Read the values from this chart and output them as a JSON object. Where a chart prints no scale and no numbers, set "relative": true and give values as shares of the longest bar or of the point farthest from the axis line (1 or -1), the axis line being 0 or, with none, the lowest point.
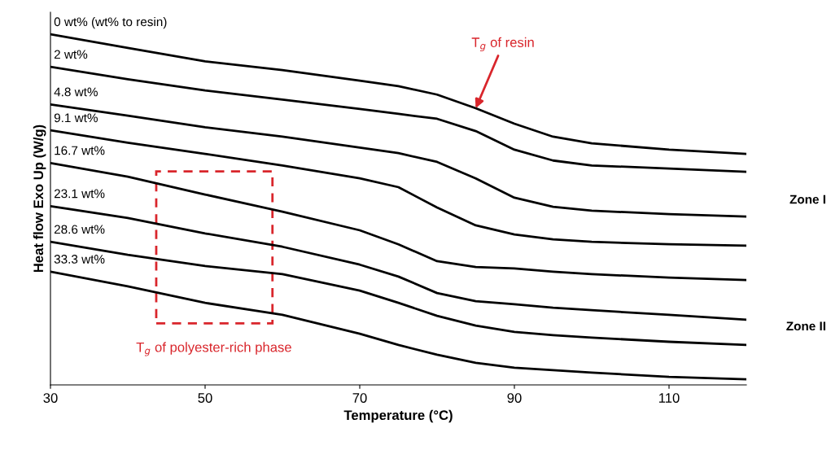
{
  "chart_data": {
    "type": "line",
    "relative": true,
    "xlabel": "Temperature (°C)",
    "ylabel": "Heat flow Exo Up (W/g)",
    "x": [
      30,
      40,
      50,
      60,
      70,
      75,
      80,
      85,
      90,
      95,
      100,
      110,
      120
    ],
    "xlim": [
      30,
      120
    ],
    "xticks": [
      30,
      50,
      70,
      90,
      110
    ],
    "grid": false,
    "legend": false,
    "marker": "none",
    "line_style": "solid",
    "series": [
      {
        "name": "0 wt% (wt% to resin)",
        "color": "#000000",
        "values": [
          1.0,
          0.961,
          0.923,
          0.898,
          0.868,
          0.852,
          0.828,
          0.789,
          0.745,
          0.708,
          0.689,
          0.671,
          0.659
        ]
      },
      {
        "name": "2 wt%",
        "color": "#000000",
        "values": [
          0.907,
          0.872,
          0.84,
          0.814,
          0.787,
          0.773,
          0.759,
          0.724,
          0.671,
          0.64,
          0.626,
          0.617,
          0.608
        ]
      },
      {
        "name": "4.8 wt%",
        "color": "#000000",
        "values": [
          0.8,
          0.768,
          0.735,
          0.708,
          0.677,
          0.661,
          0.636,
          0.589,
          0.534,
          0.508,
          0.497,
          0.487,
          0.48
        ]
      },
      {
        "name": "9.1 wt%",
        "color": "#000000",
        "values": [
          0.726,
          0.691,
          0.659,
          0.626,
          0.589,
          0.564,
          0.506,
          0.455,
          0.429,
          0.415,
          0.408,
          0.401,
          0.397
        ]
      },
      {
        "name": "16.7 wt%",
        "color": "#000000",
        "values": [
          0.633,
          0.594,
          0.543,
          0.494,
          0.441,
          0.401,
          0.353,
          0.336,
          0.332,
          0.323,
          0.316,
          0.306,
          0.299
        ]
      },
      {
        "name": "23.1 wt%",
        "color": "#000000",
        "values": [
          0.51,
          0.476,
          0.432,
          0.394,
          0.343,
          0.309,
          0.262,
          0.239,
          0.23,
          0.22,
          0.213,
          0.2,
          0.186
        ]
      },
      {
        "name": "28.6 wt%",
        "color": "#000000",
        "values": [
          0.408,
          0.371,
          0.339,
          0.316,
          0.269,
          0.234,
          0.197,
          0.169,
          0.151,
          0.142,
          0.135,
          0.123,
          0.114
        ]
      },
      {
        "name": "33.3 wt%",
        "color": "#000000",
        "values": [
          0.323,
          0.281,
          0.234,
          0.2,
          0.146,
          0.114,
          0.086,
          0.063,
          0.049,
          0.042,
          0.035,
          0.023,
          0.016
        ]
      }
    ],
    "annotations": [
      "T$_{g}$ of resin",
      "T$_{g}$ of polyester-rich phase",
      "Zone I",
      "Zone II"
    ]
  }
}
